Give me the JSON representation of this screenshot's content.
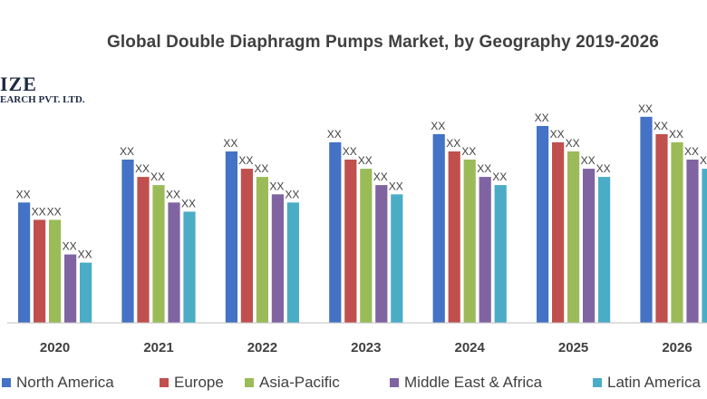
{
  "chart_data": {
    "type": "bar",
    "title": "Global Double Diaphragm Pumps Market, by Geography 2019-2026",
    "categories": [
      "2020",
      "2021",
      "2022",
      "2023",
      "2024",
      "2025",
      "2026"
    ],
    "series": [
      {
        "name": "North America",
        "color": "#4472C4",
        "values": [
          118,
          160,
          168,
          177,
          185,
          193,
          202
        ]
      },
      {
        "name": "Europe",
        "color": "#C0504D",
        "values": [
          101,
          143,
          151,
          160,
          168,
          177,
          185
        ]
      },
      {
        "name": "Asia-Pacific",
        "color": "#9BBB59",
        "values": [
          101,
          135,
          143,
          151,
          160,
          168,
          177
        ]
      },
      {
        "name": "Middle East & Africa",
        "color": "#8064A2",
        "values": [
          67,
          118,
          126,
          135,
          143,
          151,
          160
        ]
      },
      {
        "name": "Latin America",
        "color": "#4BACC6",
        "values": [
          59,
          109,
          118,
          126,
          135,
          143,
          151
        ]
      }
    ],
    "data_labels": [
      [
        "XX",
        "XX",
        "XX",
        "XX",
        "XX"
      ],
      [
        "XX",
        "XX",
        "XX",
        "XX",
        "XX"
      ],
      [
        "XX",
        "XX",
        "XX",
        "XX",
        "XX"
      ],
      [
        "XX",
        "XX",
        "XX",
        "XX",
        "XX"
      ],
      [
        "XX",
        "XX",
        "XX",
        "XX",
        "XX"
      ],
      [
        "XX",
        "XX",
        "XX",
        "XX",
        "XX"
      ],
      [
        "XX",
        "XX",
        "XX",
        "XX",
        "XX"
      ]
    ],
    "xlabel": "",
    "ylabel": "",
    "ylim": [
      0,
      240
    ],
    "grid": false,
    "legend_position": "bottom"
  },
  "watermark": {
    "line1": "IZE",
    "line2": "EARCH PVT. LTD."
  },
  "legend_labels": [
    "North America",
    "Europe",
    "Asia-Pacific",
    "Middle East & Africa",
    "Latin America"
  ]
}
